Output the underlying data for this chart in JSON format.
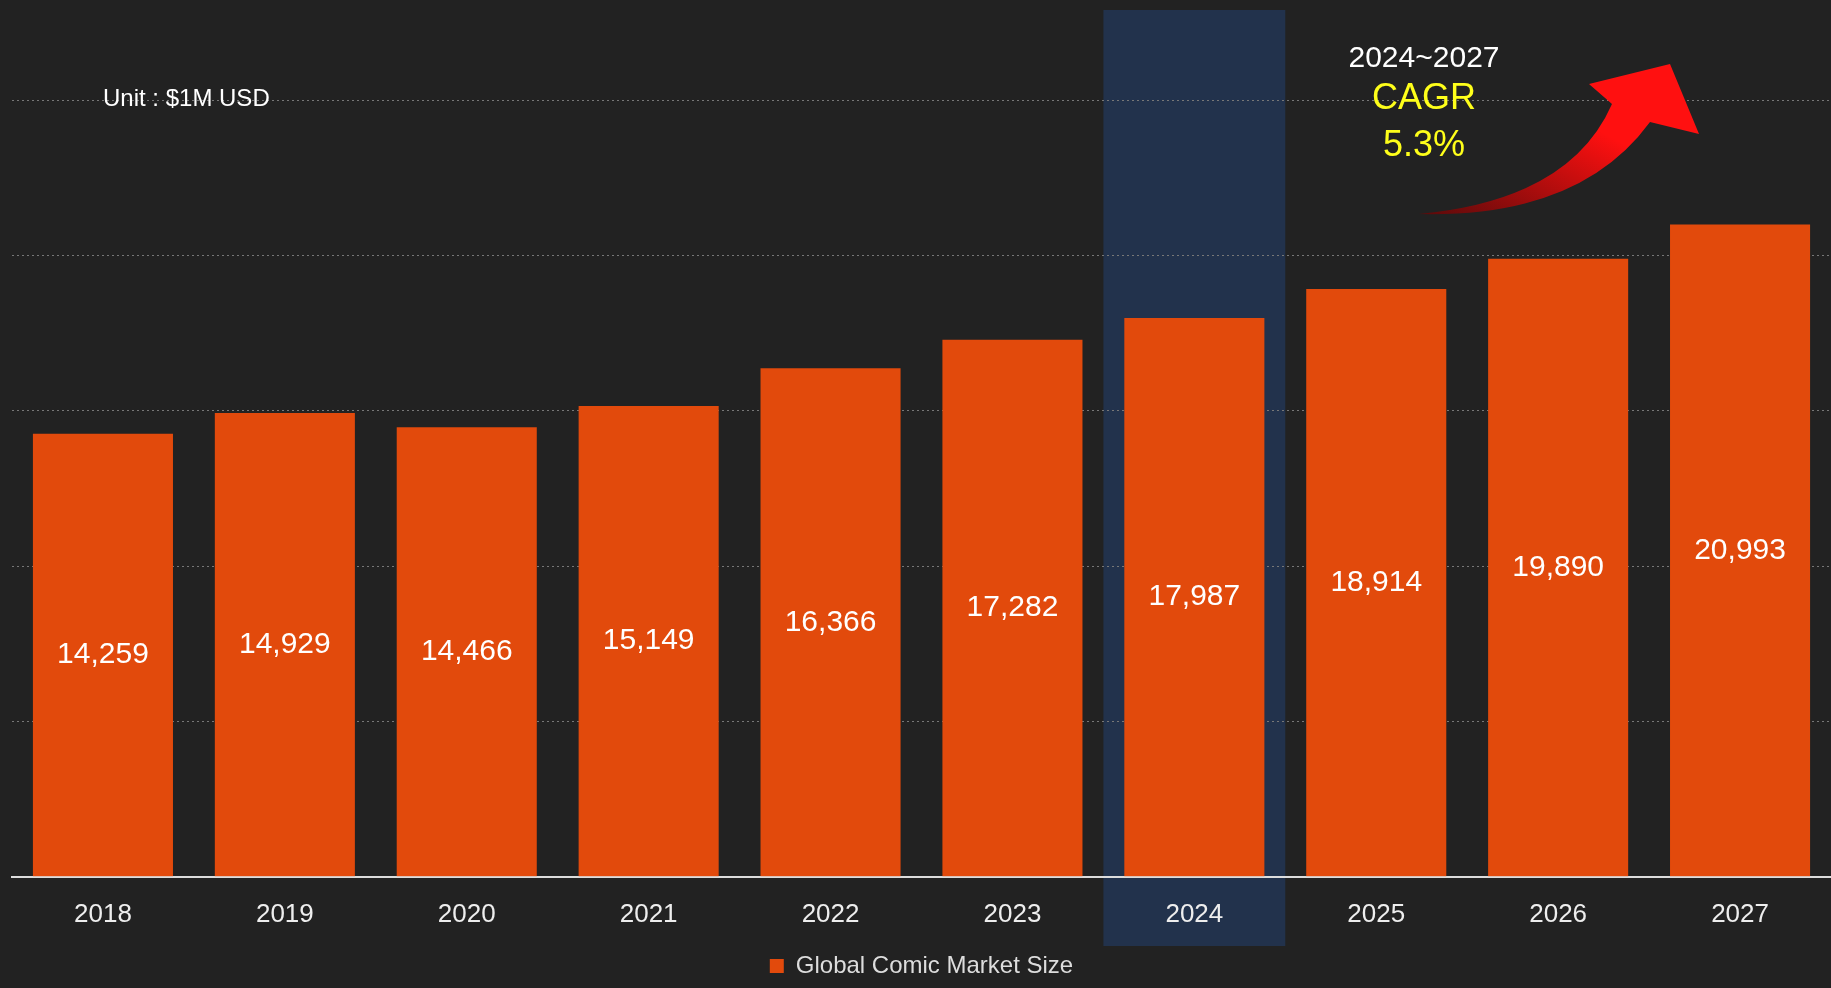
{
  "chart_data": {
    "type": "bar",
    "categories": [
      "2018",
      "2019",
      "2020",
      "2021",
      "2022",
      "2023",
      "2024",
      "2025",
      "2026",
      "2027"
    ],
    "series": [
      {
        "name": "Global Comic Market Size",
        "color": "#e24a0c",
        "values": [
          14259,
          14929,
          14466,
          15149,
          16366,
          17282,
          17987,
          18914,
          19890,
          20993
        ],
        "value_labels": [
          "14,259",
          "14,929",
          "14,466",
          "15,149",
          "16,366",
          "17,282",
          "17,987",
          "18,914",
          "19,890",
          "20,993"
        ]
      }
    ],
    "tick_labels": "x",
    "grid": "y",
    "legend": "bottom",
    "bands": [
      {
        "axis": "x",
        "from": "2024",
        "to": "2024",
        "color": "#22324c"
      }
    ],
    "annotations": [
      "Unit : $1M USD",
      "2024~2027",
      "CAGR",
      "5.3%"
    ]
  }
}
